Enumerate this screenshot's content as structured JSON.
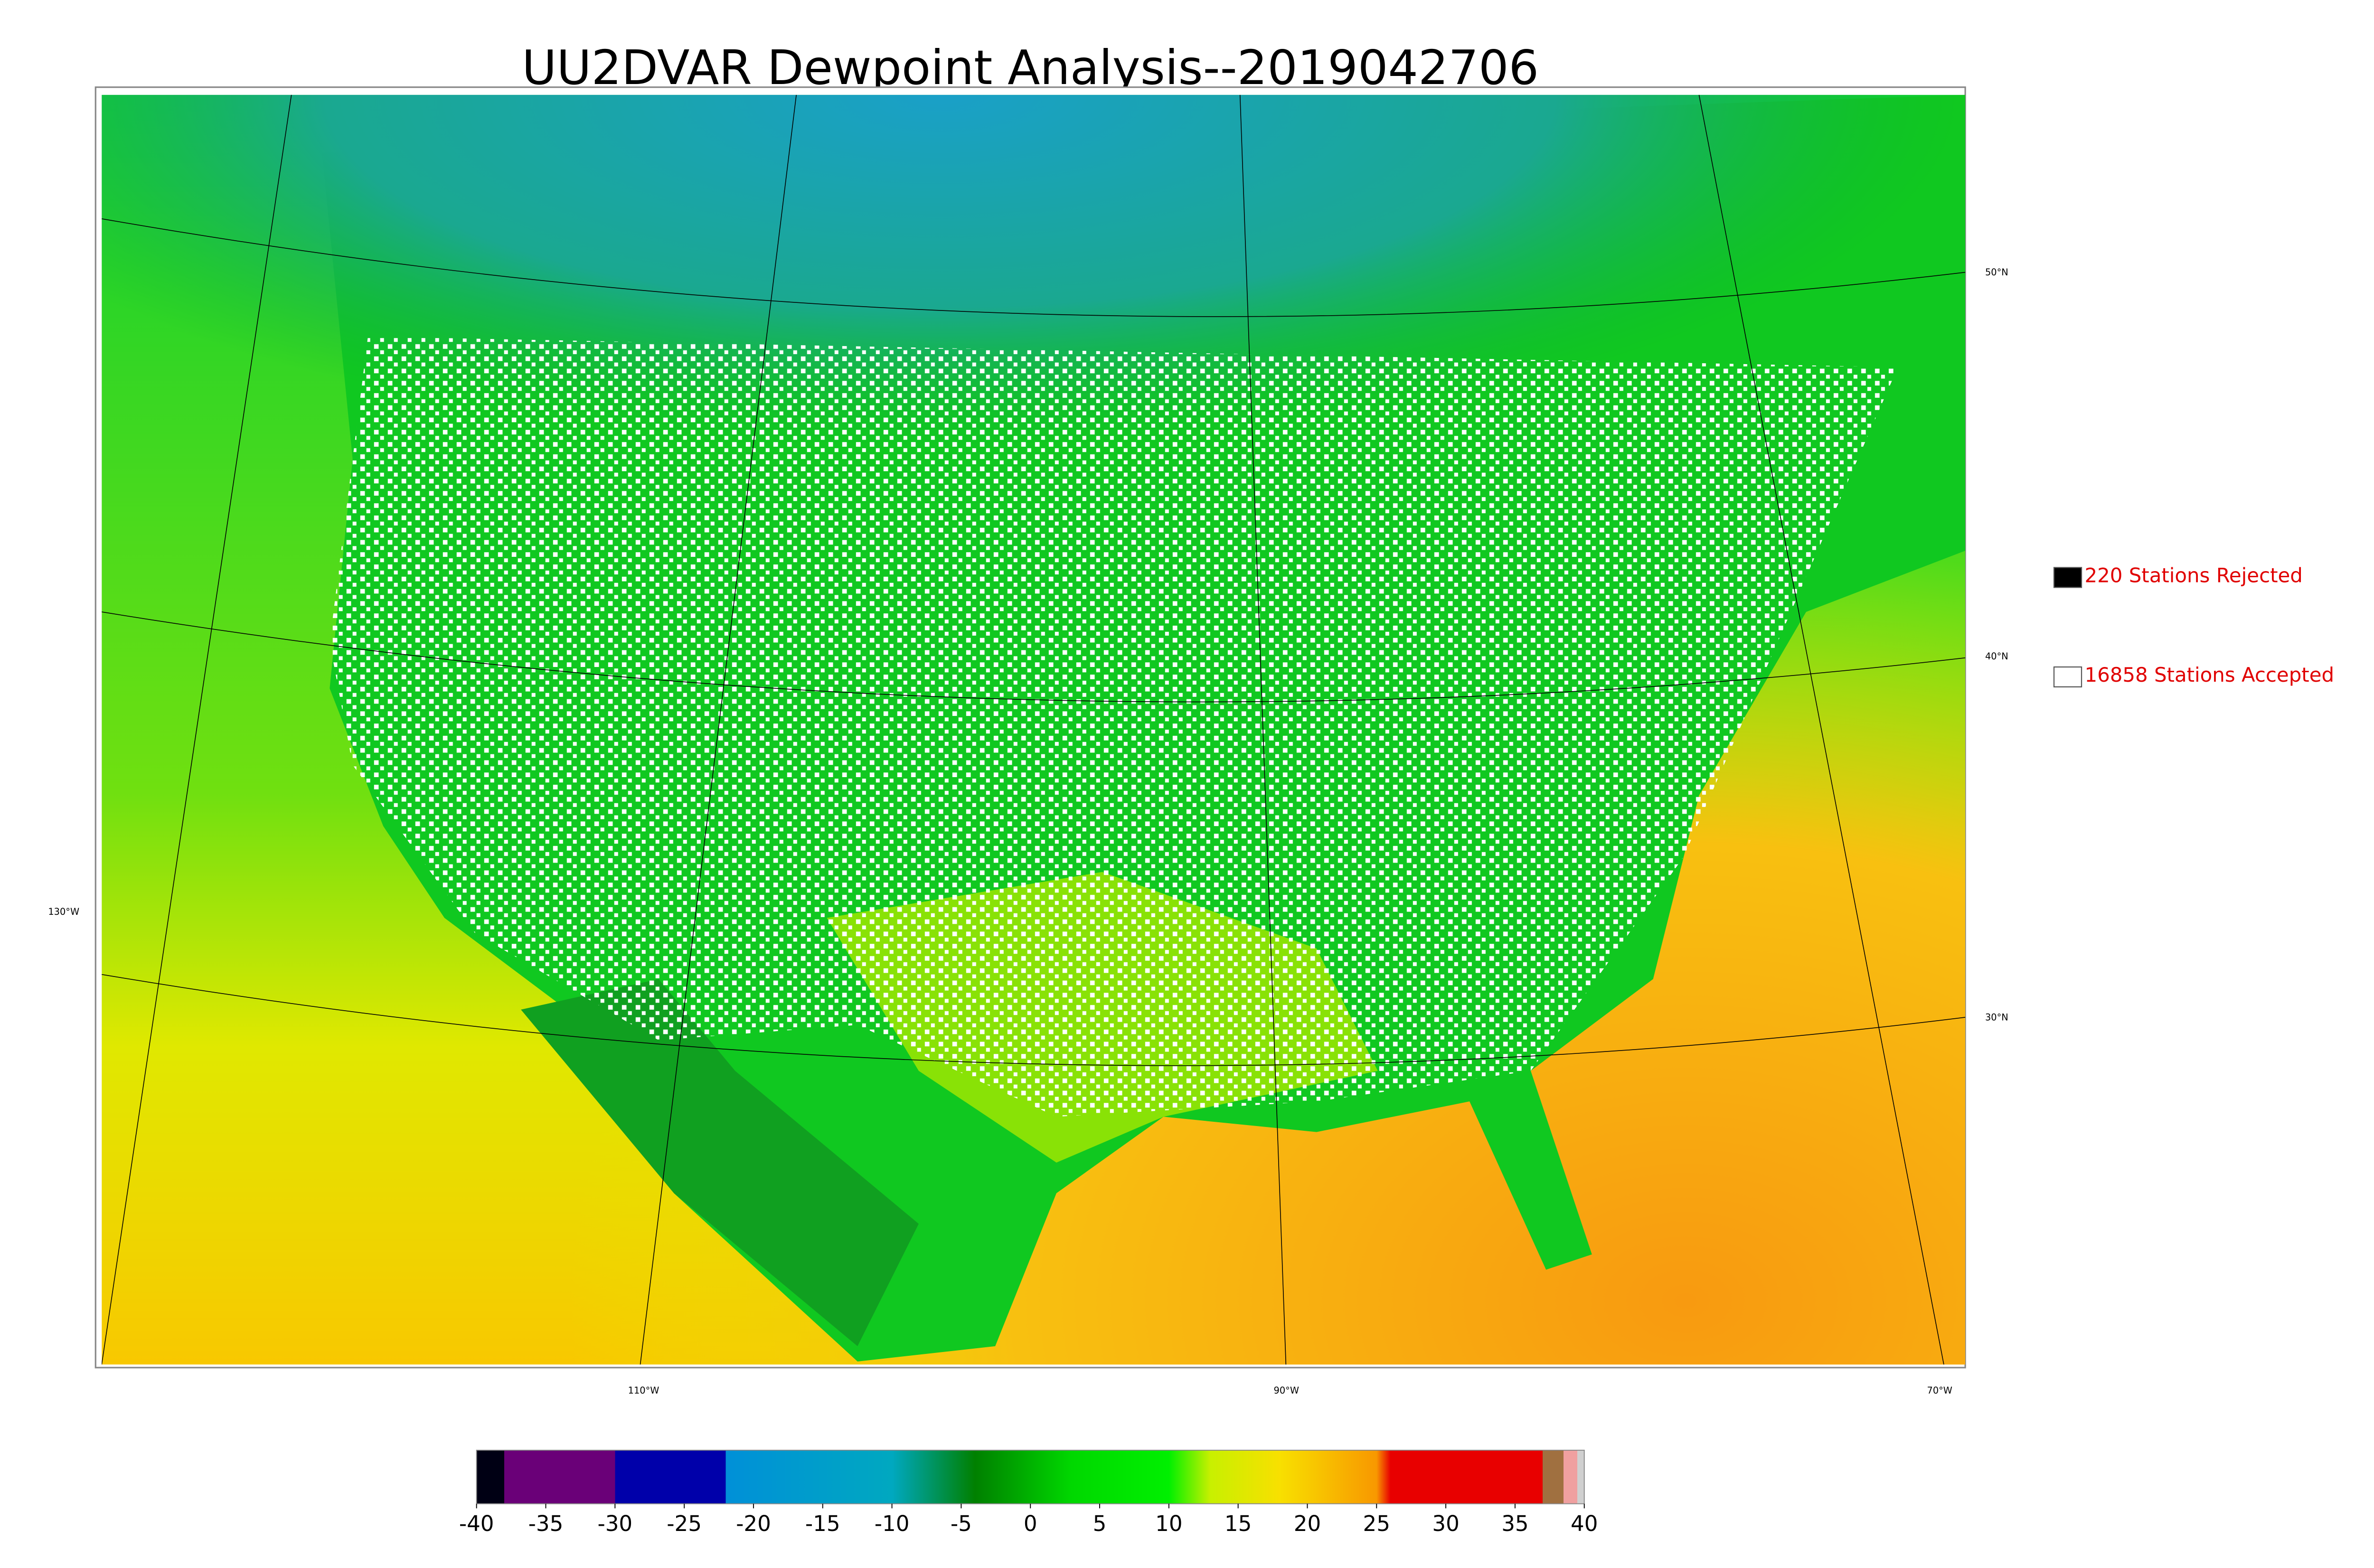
{
  "title": "UU2DVAR Dewpoint Analysis--2019042706",
  "legend": [
    {
      "label": "220 Stations Rejected",
      "color": "#000000"
    },
    {
      "label": "16858 Stations Accepted",
      "color": "#ffffff"
    }
  ],
  "latitude_labels": [
    "50°N",
    "40°N",
    "30°N"
  ],
  "longitude_labels": [
    "130°W",
    "110°W",
    "90°W",
    "70°W"
  ],
  "colorbar": {
    "range": [
      -40,
      40
    ],
    "ticks": [
      -40,
      -35,
      -30,
      -25,
      -20,
      -15,
      -10,
      -5,
      0,
      5,
      10,
      15,
      20,
      25,
      30,
      35,
      40
    ],
    "stops": [
      {
        "value": -40,
        "color": "#000014"
      },
      {
        "value": -38,
        "color": "#000014"
      },
      {
        "value": -38,
        "color": "#6a0078"
      },
      {
        "value": -30,
        "color": "#6a0078"
      },
      {
        "value": -30,
        "color": "#0000aa"
      },
      {
        "value": -22,
        "color": "#0000aa"
      },
      {
        "value": -22,
        "color": "#0090d8"
      },
      {
        "value": -10,
        "color": "#00a8c0"
      },
      {
        "value": -4,
        "color": "#008000"
      },
      {
        "value": 3,
        "color": "#00d800"
      },
      {
        "value": 10,
        "color": "#00f000"
      },
      {
        "value": 13,
        "color": "#c8f000"
      },
      {
        "value": 18,
        "color": "#f8e000"
      },
      {
        "value": 25,
        "color": "#f89800"
      },
      {
        "value": 26,
        "color": "#e80000"
      },
      {
        "value": 37,
        "color": "#e80000"
      },
      {
        "value": 37,
        "color": "#a07040"
      },
      {
        "value": 38.5,
        "color": "#a07040"
      },
      {
        "value": 38.5,
        "color": "#f0a0a0"
      },
      {
        "value": 39.5,
        "color": "#f0a0a0"
      },
      {
        "value": 39.5,
        "color": "#d0d0d0"
      },
      {
        "value": 40,
        "color": "#d0d0d0"
      }
    ]
  }
}
